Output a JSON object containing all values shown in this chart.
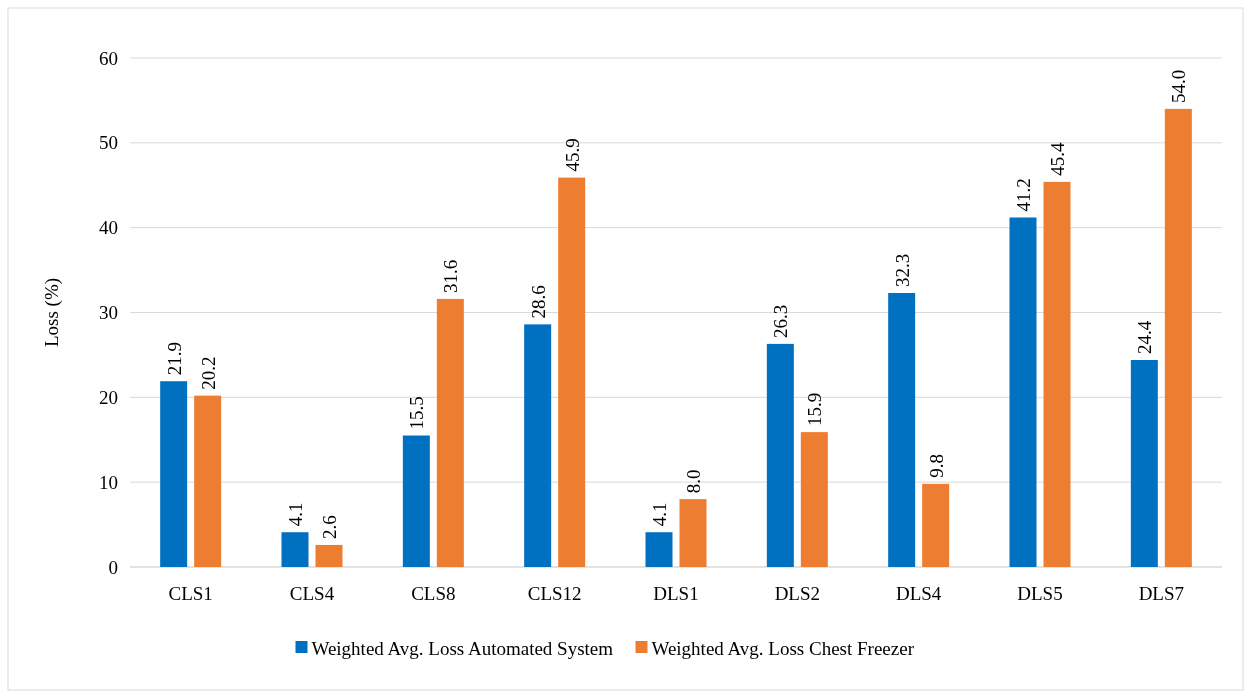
{
  "chart_data": {
    "type": "bar",
    "ylabel": "Loss (%)",
    "categories": [
      "CLS1",
      "CLS4",
      "CLS8",
      "CLS12",
      "DLS1",
      "DLS2",
      "DLS4",
      "DLS5",
      "DLS7"
    ],
    "series": [
      {
        "name": "Weighted Avg. Loss Automated System",
        "color": "#0070c0",
        "values": [
          21.9,
          4.1,
          15.5,
          28.6,
          4.1,
          26.3,
          32.3,
          41.2,
          24.4
        ],
        "value_labels": [
          "21.9",
          "4.1",
          "15.5",
          "28.6",
          "4.1",
          "26.3",
          "32.3",
          "41.2",
          "24.4"
        ]
      },
      {
        "name": "Weighted Avg. Loss Chest Freezer",
        "color": "#ed7d31",
        "values": [
          20.2,
          2.6,
          31.6,
          45.9,
          8.0,
          15.9,
          9.8,
          45.4,
          54.0
        ],
        "value_labels": [
          "20.2",
          "2.6",
          "31.6",
          "45.9",
          "8.0",
          "15.9",
          "9.8",
          "45.4",
          "54.0"
        ]
      }
    ],
    "ylim": [
      0,
      60
    ],
    "yticks": [
      0,
      10,
      20,
      30,
      40,
      50,
      60
    ],
    "grid": "y",
    "legend": "bottom"
  }
}
